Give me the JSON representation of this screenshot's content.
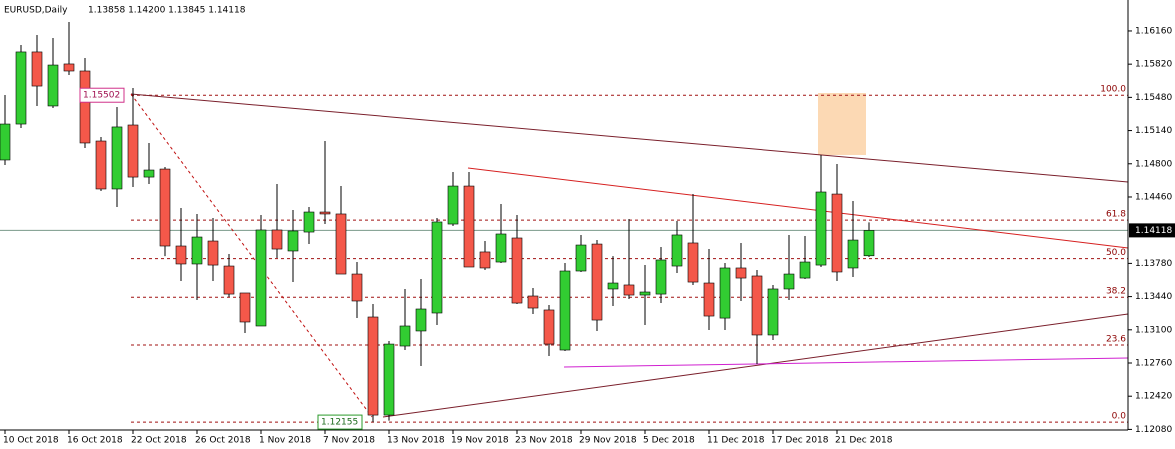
{
  "chart_data": {
    "type": "candlestick",
    "title": "EURUSD,Daily",
    "header_ohlc": "1.13858 1.14200 1.13845 1.14118",
    "categories": [
      "10 Oct 2018",
      null,
      null,
      null,
      "16 Oct 2018",
      null,
      null,
      null,
      "22 Oct 2018",
      null,
      null,
      null,
      "26 Oct 2018",
      null,
      null,
      null,
      "1 Nov 2018",
      null,
      null,
      null,
      "7 Nov 2018",
      null,
      null,
      null,
      "13 Nov 2018",
      null,
      null,
      null,
      "19 Nov 2018",
      null,
      null,
      null,
      "23 Nov 2018",
      null,
      null,
      null,
      "29 Nov 2018",
      null,
      null,
      null,
      "5 Dec 2018",
      null,
      null,
      null,
      "11 Dec 2018",
      null,
      null,
      null,
      "17 Dec 2018",
      null,
      null,
      null,
      "21 Dec 2018",
      null,
      null
    ],
    "open": [
      1.14839,
      1.15207,
      1.15945,
      1.15392,
      1.15822,
      1.1575,
      1.15033,
      1.14542,
      1.15197,
      1.14664,
      1.14746,
      1.13958,
      1.13774,
      1.14009,
      1.13753,
      1.13477,
      1.13139,
      1.14122,
      1.13907,
      1.14101,
      1.14306,
      1.14286,
      1.13671,
      1.13231,
      1.12227,
      1.12934,
      1.13088,
      1.13272,
      1.14183,
      1.14572,
      1.13897,
      1.13794,
      1.1404,
      1.13446,
      1.13303,
      1.12893,
      1.13702,
      1.13978,
      1.13518,
      1.13559,
      1.13456,
      1.13466,
      1.13753,
      1.13989,
      1.13579,
      1.1322,
      1.13733,
      1.13651,
      1.13047,
      1.13518,
      1.1363,
      1.13763,
      1.1449,
      1.13733,
      1.13858
    ],
    "high": [
      1.15504,
      1.16016,
      1.16119,
      1.16088,
      1.16252,
      1.15883,
      1.15074,
      1.15381,
      1.15576,
      1.15013,
      1.14767,
      1.14347,
      1.14286,
      1.14245,
      1.13876,
      1.13477,
      1.14275,
      1.14593,
      1.14327,
      1.14357,
      1.15033,
      1.14572,
      1.13794,
      1.13364,
      1.12985,
      1.13518,
      1.1362,
      1.14245,
      1.14716,
      1.14716,
      1.14009,
      1.14388,
      1.14275,
      1.13528,
      1.13354,
      1.13784,
      1.14071,
      1.14019,
      1.13855,
      1.14234,
      1.13763,
      1.13948,
      1.14214,
      1.1449,
      1.13927,
      1.13784,
      1.13989,
      1.13712,
      1.13559,
      1.14071,
      1.1406,
      1.1489,
      1.14798,
      1.14419,
      1.142
    ],
    "low": [
      1.14787,
      1.15166,
      1.15392,
      1.15371,
      1.15709,
      1.14962,
      1.14521,
      1.14357,
      1.14562,
      1.14593,
      1.13855,
      1.136,
      1.13405,
      1.136,
      1.13436,
      1.13067,
      1.13139,
      1.13835,
      1.13589,
      1.13978,
      1.14183,
      1.13671,
      1.13221,
      1.12155,
      1.1217,
      1.12893,
      1.12729,
      1.13149,
      1.14163,
      1.13743,
      1.13712,
      1.13784,
      1.13364,
      1.13262,
      1.12832,
      1.12883,
      1.13692,
      1.13088,
      1.13344,
      1.13415,
      1.13149,
      1.13374,
      1.13682,
      1.13559,
      1.13098,
      1.13098,
      1.13395,
      1.1275,
      1.12995,
      1.13405,
      1.1362,
      1.13743,
      1.136,
      1.13641,
      1.13845
    ],
    "close": [
      1.15207,
      1.15945,
      1.15596,
      1.15811,
      1.1575,
      1.15013,
      1.14542,
      1.15177,
      1.14664,
      1.14736,
      1.13958,
      1.13774,
      1.1405,
      1.13763,
      1.13466,
      1.1318,
      1.14122,
      1.13927,
      1.14112,
      1.14306,
      1.14286,
      1.13671,
      1.13395,
      1.12227,
      1.12954,
      1.13139,
      1.13313,
      1.14204,
      1.14572,
      1.13743,
      1.13733,
      1.14081,
      1.13374,
      1.13323,
      1.12954,
      1.13702,
      1.13968,
      1.132,
      1.13579,
      1.13456,
      1.13487,
      1.13815,
      1.14071,
      1.13589,
      1.13241,
      1.13733,
      1.1363,
      1.13047,
      1.13518,
      1.13671,
      1.13794,
      1.14511,
      1.13692,
      1.14019,
      1.14118
    ],
    "up_color": "#32cd32",
    "down_color": "#f4584a",
    "ylim": [
      1.12074,
      1.16477
    ],
    "yticks": [
      {
        "value": 1.1616,
        "label": "1.16160"
      },
      {
        "value": 1.1582,
        "label": "1.15820"
      },
      {
        "value": 1.1548,
        "label": "1.15480"
      },
      {
        "value": 1.1514,
        "label": "1.15140"
      },
      {
        "value": 1.148,
        "label": "1.14800"
      },
      {
        "value": 1.1446,
        "label": "1.14460"
      },
      {
        "value": 1.1378,
        "label": "1.13780"
      },
      {
        "value": 1.1344,
        "label": "1.13440"
      },
      {
        "value": 1.131,
        "label": "1.13100"
      },
      {
        "value": 1.1276,
        "label": "1.12760"
      },
      {
        "value": 1.1242,
        "label": "1.12420"
      },
      {
        "value": 1.1208,
        "label": "1.12080"
      }
    ],
    "grid": false,
    "last_price": 1.14118,
    "fib": {
      "high": 1.15502,
      "low": 1.12155,
      "levels": [
        {
          "value": 100.0,
          "label": "100.0"
        },
        61.8,
        {
          "value": 50.0,
          "label": "50.0"
        },
        38.2,
        23.6,
        {
          "value": 0.0,
          "label": "0.0"
        }
      ]
    }
  }
}
